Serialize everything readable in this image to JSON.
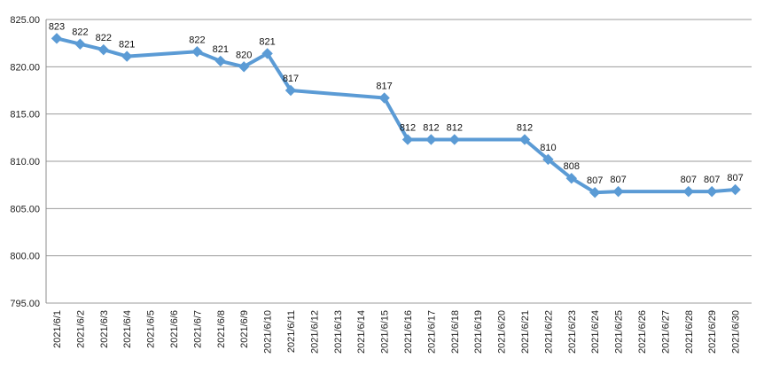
{
  "colors": {
    "background": "#ffffff",
    "grid": "#9b9b9b",
    "axis": "#8c8c8c",
    "series": "#5b9bd5"
  },
  "chart_data": {
    "type": "line",
    "title": "",
    "xlabel": "",
    "ylabel": "",
    "ylim": [
      795,
      825
    ],
    "y_ticks": [
      795,
      800,
      805,
      810,
      815,
      820,
      825
    ],
    "y_tick_labels": [
      "795.00",
      "800.00",
      "805.00",
      "810.00",
      "815.00",
      "820.00",
      "825.00"
    ],
    "grid": true,
    "legend": "none",
    "x_labels": [
      "2021/6/1",
      "2021/6/2",
      "2021/6/3",
      "2021/6/4",
      "2021/6/5",
      "2021/6/6",
      "2021/6/7",
      "2021/6/8",
      "2021/6/9",
      "2021/6/10",
      "2021/6/11",
      "2021/6/12",
      "2021/6/13",
      "2021/6/14",
      "2021/6/15",
      "2021/6/16",
      "2021/6/17",
      "2021/6/18",
      "2021/6/19",
      "2021/6/20",
      "2021/6/21",
      "2021/6/22",
      "2021/6/23",
      "2021/6/24",
      "2021/6/25",
      "2021/6/26",
      "2021/6/27",
      "2021/6/28",
      "2021/6/29",
      "2021/6/30"
    ],
    "series": [
      {
        "points": [
          {
            "x": "2021/6/1",
            "y": 823.0,
            "label": "823"
          },
          {
            "x": "2021/6/2",
            "y": 822.4,
            "label": "822"
          },
          {
            "x": "2021/6/3",
            "y": 821.8,
            "label": "822"
          },
          {
            "x": "2021/6/4",
            "y": 821.1,
            "label": "821"
          },
          {
            "x": "2021/6/7",
            "y": 821.6,
            "label": "822"
          },
          {
            "x": "2021/6/8",
            "y": 820.6,
            "label": "821"
          },
          {
            "x": "2021/6/9",
            "y": 820.0,
            "label": "820"
          },
          {
            "x": "2021/6/10",
            "y": 821.4,
            "label": "821"
          },
          {
            "x": "2021/6/11",
            "y": 817.5,
            "label": "817"
          },
          {
            "x": "2021/6/15",
            "y": 816.7,
            "label": "817"
          },
          {
            "x": "2021/6/16",
            "y": 812.3,
            "label": "812"
          },
          {
            "x": "2021/6/17",
            "y": 812.3,
            "label": "812"
          },
          {
            "x": "2021/6/18",
            "y": 812.3,
            "label": "812"
          },
          {
            "x": "2021/6/21",
            "y": 812.3,
            "label": "812"
          },
          {
            "x": "2021/6/22",
            "y": 810.2,
            "label": "810"
          },
          {
            "x": "2021/6/23",
            "y": 808.2,
            "label": "808"
          },
          {
            "x": "2021/6/24",
            "y": 806.7,
            "label": "807"
          },
          {
            "x": "2021/6/25",
            "y": 806.8,
            "label": "807"
          },
          {
            "x": "2021/6/28",
            "y": 806.8,
            "label": "807"
          },
          {
            "x": "2021/6/29",
            "y": 806.8,
            "label": "807"
          },
          {
            "x": "2021/6/30",
            "y": 807.0,
            "label": "807"
          }
        ]
      }
    ]
  }
}
